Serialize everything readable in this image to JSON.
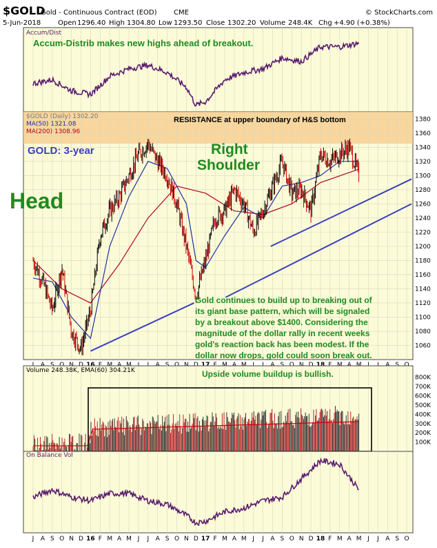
{
  "header": {
    "symbol": "$GOLD",
    "name": "Gold - Continuous Contract (EOD)",
    "exchange": "CME",
    "source": "© StockCharts.com",
    "date": "5-Jun-2018",
    "open_label": "Open",
    "open": "1296.40",
    "high_label": "High",
    "high": "1304.80",
    "low_label": "Low",
    "low": "1293.50",
    "close_label": "Close",
    "close": "1302.20",
    "volume_label": "Volume",
    "volume": "248.4K",
    "chg_label": "Chg",
    "chg": "+4.90 (+0.38%)"
  },
  "panels": {
    "accum": {
      "legend": "Accum/Dist",
      "note": "Accum-Distrib makes new highs ahead of breakout."
    },
    "price": {
      "legend_main": "$GOLD (Daily) 1302.20",
      "legend_ma50": "MA(50) 1321.08",
      "legend_ma200": "MA(200) 1308.96",
      "resistance_note": "RESISTANCE at upper boundary of H&S bottom",
      "period_label": "GOLD: 3-year",
      "label_head": "Head",
      "label_right_1": "Right",
      "label_right_2": "Shoulder",
      "commentary": [
        "Gold continues to build up to breaking out of",
        "its giant base pattern, which will be signaled",
        "by a breakout above $1400. Considering the",
        "magnitude of the dollar rally in recent weeks",
        "gold's reaction back has been modest. If the",
        "dollar now drops, gold could soon break out."
      ]
    },
    "volume": {
      "legend": "Volume 248.38K, EMA(60) 304.21K",
      "note": "Upside volume buildup is bullish."
    },
    "obv": {
      "legend": "On Balance Vol"
    }
  },
  "colors": {
    "panel_bg": "#fbfbd8",
    "price_up": "#000000",
    "price_down": "#cc0000",
    "ma50": "#1f2ea8",
    "ma200": "#b3001b",
    "indicator": "#5a1a6e",
    "trendline": "#3a3fbf",
    "annotation_green": "#1f8a1f",
    "resistance_band": "#f7c98a"
  },
  "chart_data": {
    "type": "line",
    "title": "$GOLD Gold - Continuous Contract (EOD) CME",
    "y_axis_ticks": [
      1060,
      1080,
      1100,
      1120,
      1140,
      1160,
      1180,
      1200,
      1220,
      1240,
      1260,
      1280,
      1300,
      1320,
      1340,
      1360,
      1380
    ],
    "ylim": [
      1040,
      1390
    ],
    "volume_ticks": [
      "100K",
      "200K",
      "300K",
      "400K",
      "500K",
      "600K",
      "700K",
      "800K"
    ],
    "x_month_labels": [
      "J",
      "A",
      "S",
      "O",
      "N",
      "D",
      "16",
      "F",
      "M",
      "A",
      "M",
      "J",
      "J",
      "A",
      "S",
      "O",
      "N",
      "D",
      "17",
      "F",
      "M",
      "A",
      "M",
      "J",
      "J",
      "A",
      "S",
      "O",
      "N",
      "D",
      "18",
      "F",
      "M",
      "A",
      "M",
      "J",
      "J",
      "A",
      "S",
      "O"
    ],
    "x_month_index_range": [
      0,
      39
    ],
    "price_path": [
      [
        0,
        1180
      ],
      [
        1,
        1150
      ],
      [
        2,
        1110
      ],
      [
        3,
        1170
      ],
      [
        4,
        1080
      ],
      [
        5,
        1055
      ],
      [
        6,
        1110
      ],
      [
        7,
        1215
      ],
      [
        8,
        1250
      ],
      [
        9,
        1270
      ],
      [
        10,
        1300
      ],
      [
        11,
        1330
      ],
      [
        12,
        1345
      ],
      [
        13,
        1320
      ],
      [
        14,
        1300
      ],
      [
        15,
        1260
      ],
      [
        16,
        1200
      ],
      [
        17,
        1130
      ],
      [
        18,
        1180
      ],
      [
        19,
        1240
      ],
      [
        20,
        1250
      ],
      [
        21,
        1280
      ],
      [
        22,
        1260
      ],
      [
        23,
        1220
      ],
      [
        24,
        1250
      ],
      [
        25,
        1285
      ],
      [
        26,
        1320
      ],
      [
        27,
        1275
      ],
      [
        28,
        1280
      ],
      [
        29,
        1250
      ],
      [
        30,
        1330
      ],
      [
        31,
        1320
      ],
      [
        32,
        1330
      ],
      [
        33,
        1340
      ],
      [
        34,
        1300
      ]
    ],
    "ma50_path": [
      [
        0,
        1155
      ],
      [
        2,
        1150
      ],
      [
        4,
        1100
      ],
      [
        6,
        1070
      ],
      [
        8,
        1200
      ],
      [
        10,
        1270
      ],
      [
        12,
        1320
      ],
      [
        14,
        1310
      ],
      [
        16,
        1260
      ],
      [
        17,
        1180
      ],
      [
        18,
        1170
      ],
      [
        20,
        1215
      ],
      [
        22,
        1255
      ],
      [
        24,
        1240
      ],
      [
        26,
        1285
      ],
      [
        28,
        1290
      ],
      [
        30,
        1300
      ],
      [
        32,
        1320
      ],
      [
        34,
        1320
      ]
    ],
    "ma200_path": [
      [
        0,
        1180
      ],
      [
        3,
        1140
      ],
      [
        6,
        1120
      ],
      [
        9,
        1175
      ],
      [
        12,
        1240
      ],
      [
        15,
        1285
      ],
      [
        18,
        1275
      ],
      [
        21,
        1250
      ],
      [
        24,
        1245
      ],
      [
        27,
        1260
      ],
      [
        30,
        1290
      ],
      [
        34,
        1309
      ]
    ],
    "accum_dist_path": [
      [
        0,
        0.35
      ],
      [
        2,
        0.4
      ],
      [
        4,
        0.25
      ],
      [
        6,
        0.2
      ],
      [
        8,
        0.45
      ],
      [
        10,
        0.55
      ],
      [
        12,
        0.6
      ],
      [
        14,
        0.5
      ],
      [
        16,
        0.3
      ],
      [
        17,
        0.05
      ],
      [
        18,
        0.1
      ],
      [
        20,
        0.4
      ],
      [
        22,
        0.5
      ],
      [
        24,
        0.55
      ],
      [
        26,
        0.7
      ],
      [
        28,
        0.65
      ],
      [
        30,
        0.85
      ],
      [
        32,
        0.85
      ],
      [
        34,
        0.9
      ]
    ],
    "obv_path": [
      [
        0,
        0.45
      ],
      [
        2,
        0.55
      ],
      [
        4,
        0.45
      ],
      [
        6,
        0.4
      ],
      [
        8,
        0.5
      ],
      [
        10,
        0.5
      ],
      [
        12,
        0.4
      ],
      [
        14,
        0.35
      ],
      [
        16,
        0.2
      ],
      [
        17,
        0.1
      ],
      [
        18,
        0.12
      ],
      [
        20,
        0.25
      ],
      [
        22,
        0.3
      ],
      [
        24,
        0.4
      ],
      [
        26,
        0.45
      ],
      [
        28,
        0.7
      ],
      [
        30,
        0.95
      ],
      [
        32,
        0.9
      ],
      [
        34,
        0.55
      ]
    ]
  }
}
